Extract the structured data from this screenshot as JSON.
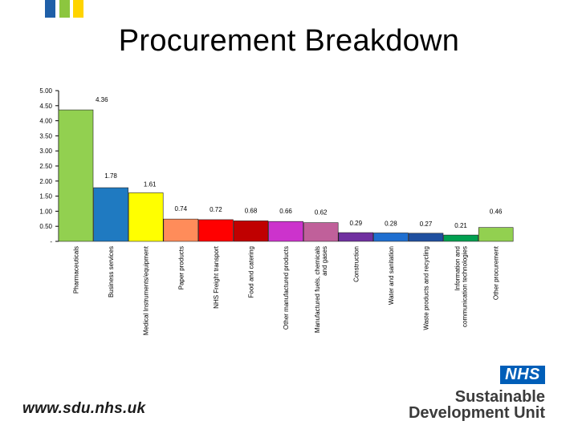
{
  "title": "Procurement Breakdown",
  "footer": {
    "url": "www.sdu.nhs.uk"
  },
  "logo": {
    "badge": "NHS",
    "line1": "Sustainable",
    "line2": "Development Unit"
  },
  "colors": {
    "deco_blue": "#1f5fa8",
    "deco_green": "#8cc63f",
    "deco_yellow": "#ffd400"
  },
  "chart_data": {
    "type": "bar",
    "title": "Procurement Breakdown",
    "categories": [
      "Pharmaceuticals",
      "Business services",
      "Medical Instruments/equipment",
      "Paper products",
      "NHS Freight transport",
      "Food and catering",
      "Other manufactured products",
      "Manufactured fuels, chemicals and gases",
      "Construction",
      "Water and sanitation",
      "Waste products and recycling",
      "Information and communication technologies",
      "Other procurement"
    ],
    "values": [
      4.36,
      1.78,
      1.61,
      0.74,
      0.72,
      0.68,
      0.66,
      0.62,
      0.29,
      0.28,
      0.27,
      0.21,
      0.46
    ],
    "value_labels": [
      "4.36",
      "1.78",
      "1.61",
      "0.74",
      "0.72",
      "0.68",
      "0.66",
      "0.62",
      "0.29",
      "0.28",
      "0.27",
      "0.21",
      "0.46"
    ],
    "colors": [
      "#92d050",
      "#1f7ac1",
      "#ffff00",
      "#ff8c5a",
      "#ff0000",
      "#c00000",
      "#cc33cc",
      "#c0609a",
      "#7030a0",
      "#1f6fd0",
      "#1f4f9f",
      "#00a050",
      "#92d050"
    ],
    "yticks": [
      "-",
      "0.50",
      "1.00",
      "1.50",
      "2.00",
      "2.50",
      "3.00",
      "3.50",
      "4.00",
      "4.50",
      "5.00"
    ],
    "ylim": [
      0,
      5
    ],
    "xlabel": "",
    "ylabel": "",
    "grid": false,
    "legend": "none"
  }
}
